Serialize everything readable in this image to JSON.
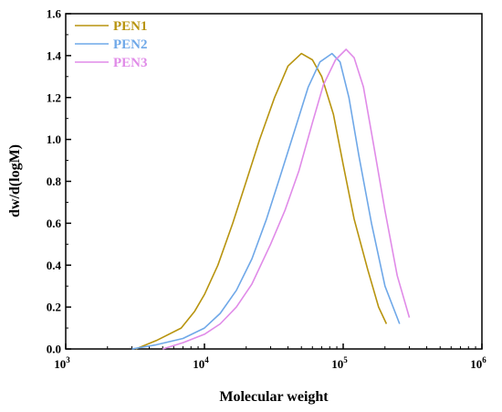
{
  "chart_data": {
    "type": "line",
    "xscale": "log",
    "xlabel": "Molecular weight",
    "ylabel": "dw/d(logM)",
    "xlim": [
      1000,
      1000000
    ],
    "ylim": [
      0,
      1.6
    ],
    "xticks": [
      {
        "value": 1000,
        "base": "10",
        "exp": "3"
      },
      {
        "value": 10000,
        "base": "10",
        "exp": "4"
      },
      {
        "value": 100000,
        "base": "10",
        "exp": "5"
      },
      {
        "value": 1000000,
        "base": "10",
        "exp": "6"
      }
    ],
    "yticks": [
      "0.0",
      "0.2",
      "0.4",
      "0.6",
      "0.8",
      "1.0",
      "1.2",
      "1.4",
      "1.6"
    ],
    "grid": false,
    "legend_position": "top-left",
    "series": [
      {
        "name": "PEN1",
        "color": "#b8940f",
        "points": [
          [
            3200,
            0.0
          ],
          [
            4500,
            0.04
          ],
          [
            6800,
            0.1
          ],
          [
            8500,
            0.18
          ],
          [
            10000,
            0.26
          ],
          [
            12500,
            0.4
          ],
          [
            16000,
            0.6
          ],
          [
            20000,
            0.8
          ],
          [
            25000,
            1.0
          ],
          [
            32000,
            1.2
          ],
          [
            40000,
            1.35
          ],
          [
            50000,
            1.41
          ],
          [
            60000,
            1.38
          ],
          [
            70000,
            1.3
          ],
          [
            85000,
            1.12
          ],
          [
            100000,
            0.88
          ],
          [
            120000,
            0.62
          ],
          [
            150000,
            0.38
          ],
          [
            180000,
            0.2
          ],
          [
            205000,
            0.12
          ]
        ]
      },
      {
        "name": "PEN2",
        "color": "#6fa8e8",
        "points": [
          [
            3000,
            0.0
          ],
          [
            4500,
            0.02
          ],
          [
            7000,
            0.05
          ],
          [
            10000,
            0.1
          ],
          [
            13000,
            0.17
          ],
          [
            17000,
            0.28
          ],
          [
            22000,
            0.43
          ],
          [
            28000,
            0.62
          ],
          [
            35000,
            0.82
          ],
          [
            45000,
            1.05
          ],
          [
            56000,
            1.25
          ],
          [
            68000,
            1.37
          ],
          [
            83000,
            1.41
          ],
          [
            95000,
            1.37
          ],
          [
            110000,
            1.2
          ],
          [
            130000,
            0.92
          ],
          [
            160000,
            0.6
          ],
          [
            200000,
            0.3
          ],
          [
            255000,
            0.12
          ]
        ]
      },
      {
        "name": "PEN3",
        "color": "#e08be8",
        "points": [
          [
            5000,
            0.0
          ],
          [
            7000,
            0.03
          ],
          [
            10000,
            0.07
          ],
          [
            13000,
            0.12
          ],
          [
            17000,
            0.2
          ],
          [
            22000,
            0.31
          ],
          [
            30000,
            0.5
          ],
          [
            38000,
            0.66
          ],
          [
            48000,
            0.85
          ],
          [
            60000,
            1.08
          ],
          [
            72000,
            1.26
          ],
          [
            88000,
            1.38
          ],
          [
            105000,
            1.43
          ],
          [
            120000,
            1.39
          ],
          [
            140000,
            1.25
          ],
          [
            165000,
            0.98
          ],
          [
            200000,
            0.66
          ],
          [
            245000,
            0.35
          ],
          [
            300000,
            0.15
          ]
        ]
      }
    ]
  }
}
